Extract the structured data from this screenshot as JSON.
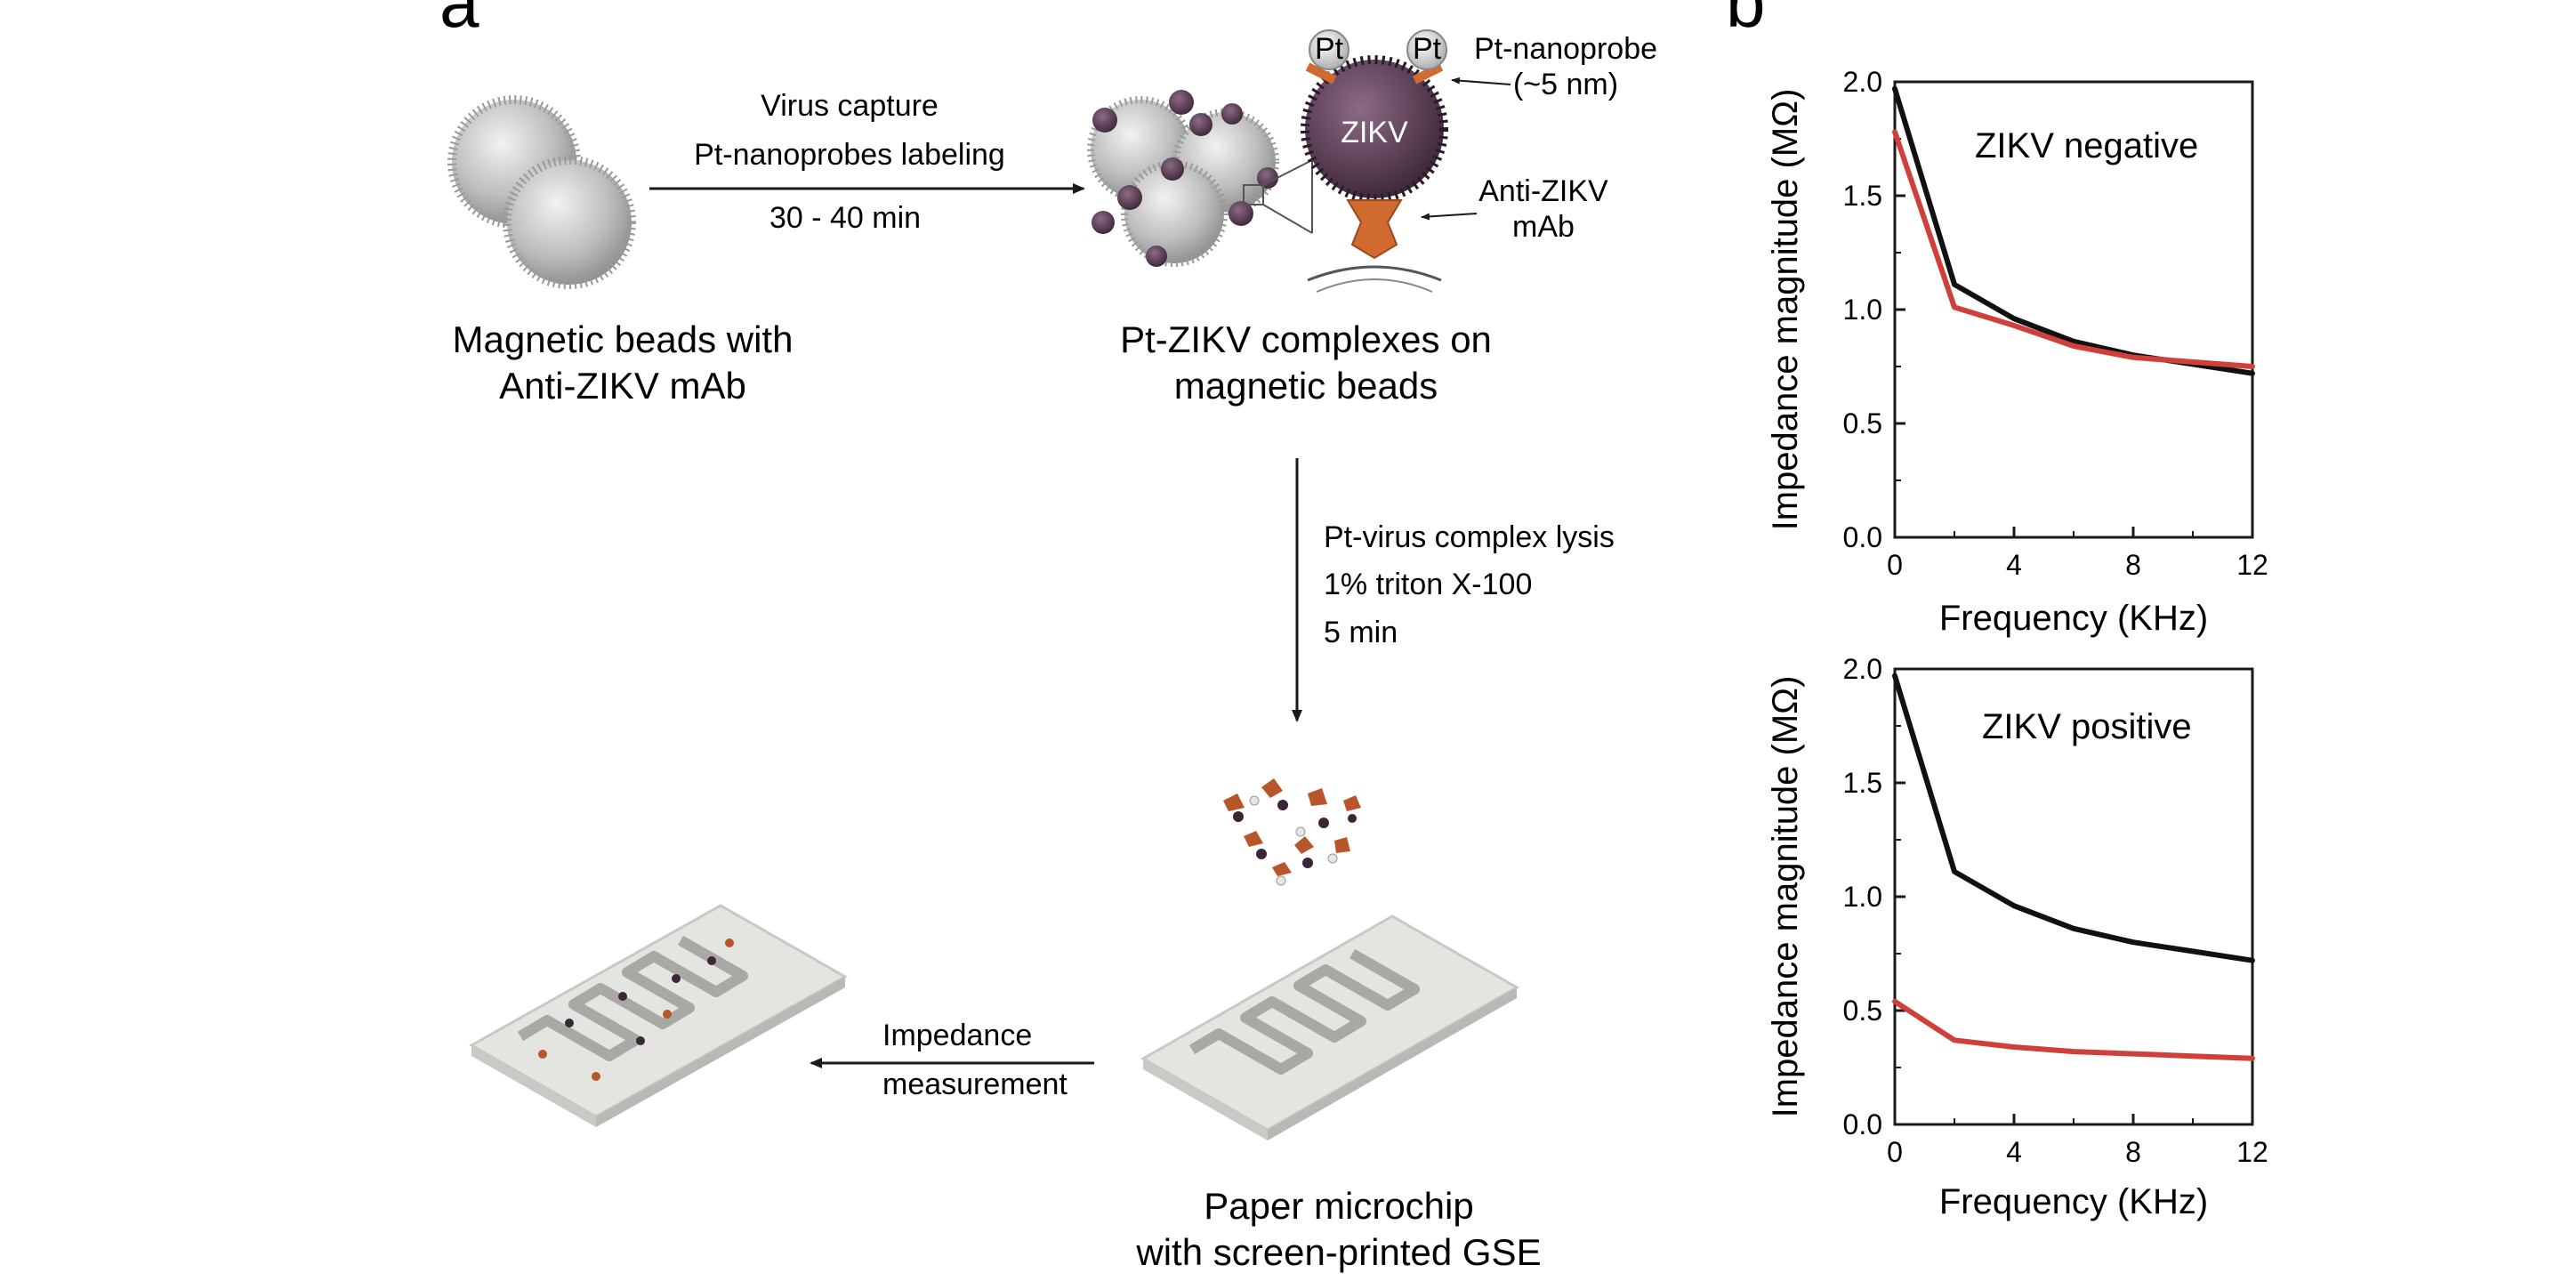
{
  "panel_a": {
    "letter": "a",
    "beads_caption": [
      "Magnetic beads with",
      "Anti-ZIKV mAb"
    ],
    "step1": [
      "Virus capture",
      "Pt-nanoprobes labeling",
      "30 - 40 min"
    ],
    "complex_caption": [
      "Pt-ZIKV complexes on",
      "magnetic beads"
    ],
    "pt_label": "Pt",
    "virus_label": "ZIKV",
    "nanoprobe_label": [
      "Pt-nanoprobe",
      "(~5 nm)"
    ],
    "antibody_label": [
      "Anti-ZIKV",
      "mAb"
    ],
    "step2": [
      "Pt-virus complex lysis",
      "1% triton X-100",
      "5 min"
    ],
    "step3": [
      "Impedance",
      "measurement"
    ],
    "chip_caption": [
      "Paper microchip",
      "with screen-printed GSE"
    ]
  },
  "panel_b": {
    "letter": "b"
  },
  "chart_data": [
    {
      "type": "line",
      "annotation": "ZIKV negative",
      "xlabel": "Frequency (KHz)",
      "ylabel": "Impedance magnitude (MΩ)",
      "xlim": [
        0,
        12
      ],
      "ylim": [
        0,
        2.0
      ],
      "xticks": [
        "0",
        "4",
        "8",
        "12"
      ],
      "yticks": [
        "0.0",
        "0.5",
        "1.0",
        "1.5",
        "2.0"
      ],
      "series": [
        {
          "color": "#111111",
          "x": [
            0,
            2,
            4,
            6,
            8,
            10,
            12
          ],
          "y": [
            1.97,
            1.11,
            0.96,
            0.86,
            0.8,
            0.76,
            0.72
          ]
        },
        {
          "color": "#d0403a",
          "x": [
            0,
            2,
            4,
            6,
            8,
            10,
            12
          ],
          "y": [
            1.78,
            1.01,
            0.93,
            0.84,
            0.79,
            0.77,
            0.75
          ]
        }
      ]
    },
    {
      "type": "line",
      "annotation": "ZIKV positive",
      "xlabel": "Frequency (KHz)",
      "ylabel": "Impedance magnitude (MΩ)",
      "xlim": [
        0,
        12
      ],
      "ylim": [
        0,
        2.0
      ],
      "xticks": [
        "0",
        "4",
        "8",
        "12"
      ],
      "yticks": [
        "0.0",
        "0.5",
        "1.0",
        "1.5",
        "2.0"
      ],
      "series": [
        {
          "color": "#111111",
          "x": [
            0,
            2,
            4,
            6,
            8,
            10,
            12
          ],
          "y": [
            1.97,
            1.11,
            0.96,
            0.86,
            0.8,
            0.76,
            0.72
          ]
        },
        {
          "color": "#d0403a",
          "x": [
            0,
            2,
            4,
            6,
            8,
            10,
            12
          ],
          "y": [
            0.54,
            0.37,
            0.34,
            0.32,
            0.31,
            0.3,
            0.29
          ]
        }
      ]
    }
  ]
}
